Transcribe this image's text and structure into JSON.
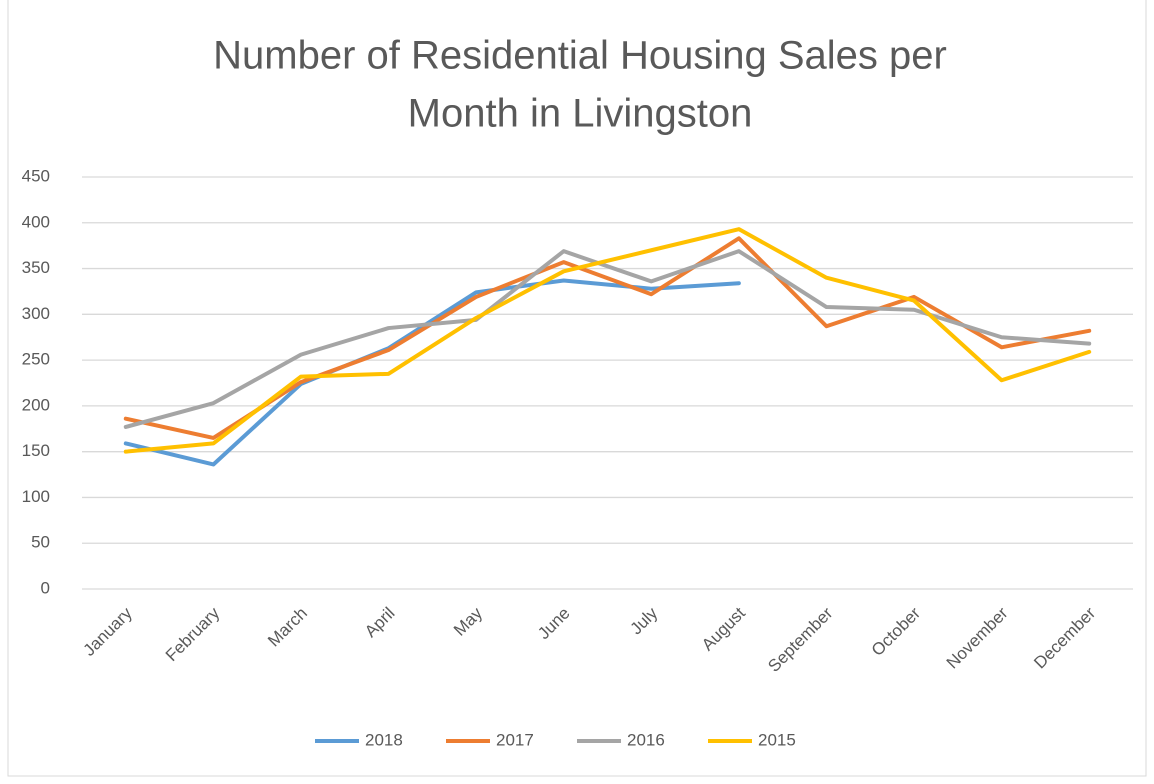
{
  "chart_data": {
    "type": "line",
    "title": [
      "Number of Residential Housing Sales per",
      "Month in Livingston"
    ],
    "categories": [
      "January",
      "February",
      "March",
      "April",
      "May",
      "June",
      "July",
      "August",
      "September",
      "October",
      "November",
      "December"
    ],
    "series": [
      {
        "name": "2018",
        "color": "#5b9bd5",
        "values": [
          159,
          136,
          224,
          263,
          324,
          337,
          328,
          334,
          null,
          null,
          null,
          null
        ]
      },
      {
        "name": "2017",
        "color": "#ed7d31",
        "values": [
          186,
          165,
          226,
          261,
          319,
          357,
          322,
          383,
          287,
          319,
          264,
          282
        ]
      },
      {
        "name": "2016",
        "color": "#a5a5a5",
        "values": [
          177,
          203,
          256,
          285,
          294,
          369,
          336,
          369,
          308,
          305,
          275,
          268
        ]
      },
      {
        "name": "2015",
        "color": "#ffc000",
        "values": [
          150,
          159,
          232,
          235,
          296,
          347,
          370,
          393,
          340,
          315,
          228,
          259
        ]
      }
    ],
    "ylim": [
      0,
      450
    ],
    "yticks": [
      0,
      50,
      100,
      150,
      200,
      250,
      300,
      350,
      400,
      450
    ],
    "grid": true,
    "legend": "bottom"
  }
}
